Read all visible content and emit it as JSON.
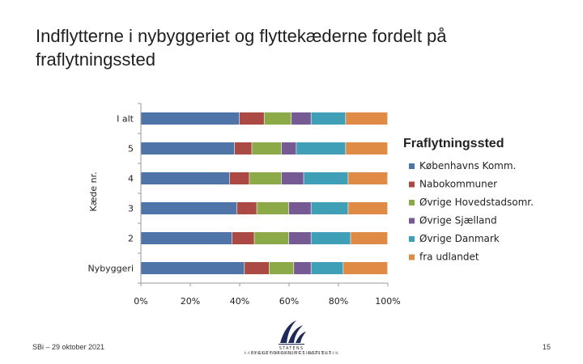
{
  "slide": {
    "title": "Indflytterne i nybyggeriet og flyttekæderne fordelt på fraflytningssted",
    "footer_left": "SBi – 29 oktober 2021",
    "page_number": "15",
    "logo_institute": "STATENS BYGGEFORSKNINGSINSTITUT",
    "logo_university": "AALBORG UNIVERSITET KØBENHAVN"
  },
  "colors": {
    "series": [
      "#4f74a8",
      "#ab4945",
      "#8cab48",
      "#765a94",
      "#3f9fb6",
      "#e08b45"
    ],
    "axis": "#999999"
  },
  "chart_data": {
    "type": "bar",
    "orientation": "horizontal",
    "stacked": "percent",
    "categories": [
      "I alt",
      "5",
      "4",
      "3",
      "2",
      "Nybyggeri"
    ],
    "series": [
      {
        "name": "Københavns Komm.",
        "values": [
          40,
          38,
          36,
          39,
          37,
          42
        ]
      },
      {
        "name": "Nabokommuner",
        "values": [
          10,
          7,
          8,
          8,
          9,
          10
        ]
      },
      {
        "name": "Øvrige Hovedstadsomr.",
        "values": [
          11,
          12,
          13,
          13,
          14,
          10
        ]
      },
      {
        "name": "Øvrige Sjælland",
        "values": [
          8,
          6,
          9,
          9,
          9,
          7
        ]
      },
      {
        "name": "Øvrige Danmark",
        "values": [
          14,
          20,
          18,
          15,
          16,
          13
        ]
      },
      {
        "name": "fra udlandet",
        "values": [
          17,
          17,
          16,
          16,
          15,
          18
        ]
      }
    ],
    "xlim": [
      0,
      100
    ],
    "xticks": [
      "0%",
      "20%",
      "40%",
      "60%",
      "80%",
      "100%"
    ],
    "xlabel": "",
    "ylabel": "Kæde nr.",
    "legend_title": "Fraflytningssted",
    "legend_position": "right",
    "grid": false
  }
}
